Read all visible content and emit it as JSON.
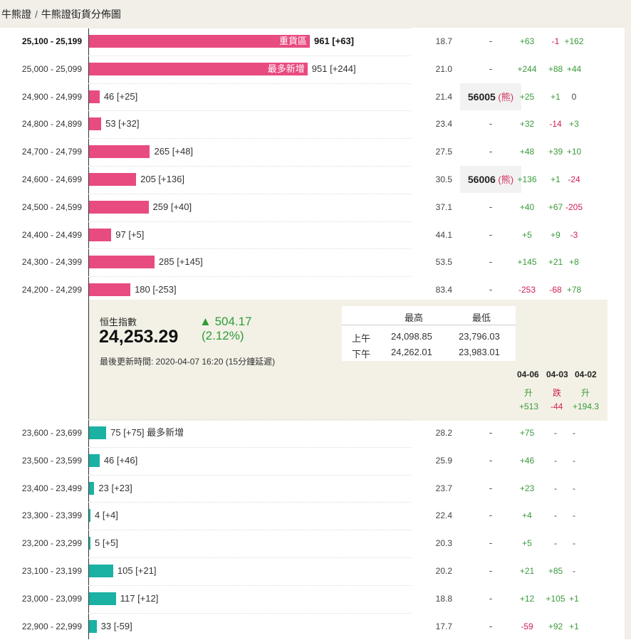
{
  "breadcrumb": {
    "root": "牛熊證",
    "current": "牛熊證街貨分佈圖"
  },
  "bull_rows": [
    {
      "range": "25,100 - 25,199",
      "bold": true,
      "value": 961,
      "inlabel": "重貨區",
      "count": "961 [+63]",
      "ratio": "18.7",
      "code": "-",
      "pin": "",
      "changes": [
        [
          "+63",
          "pos"
        ],
        [
          "-1",
          "neg"
        ],
        [
          "+162",
          "pos"
        ]
      ]
    },
    {
      "range": "25,000 - 25,099",
      "bold": false,
      "value": 951,
      "inlabel": "最多新增",
      "count": "951 [+244]",
      "ratio": "21.0",
      "code": "-",
      "pin": "",
      "changes": [
        [
          "+244",
          "pos"
        ],
        [
          "+88",
          "pos"
        ],
        [
          "+44",
          "pos"
        ]
      ]
    },
    {
      "range": "24,900 - 24,999",
      "bold": false,
      "value": 46,
      "inlabel": "",
      "count": "46 [+25]",
      "ratio": "21.4",
      "code": "56005",
      "pin": "熊",
      "changes": [
        [
          "+25",
          "pos"
        ],
        [
          "+1",
          "pos"
        ],
        [
          "0",
          "neu"
        ]
      ]
    },
    {
      "range": "24,800 - 24,899",
      "bold": false,
      "value": 53,
      "inlabel": "",
      "count": "53 [+32]",
      "ratio": "23.4",
      "code": "-",
      "pin": "",
      "changes": [
        [
          "+32",
          "pos"
        ],
        [
          "-14",
          "neg"
        ],
        [
          "+3",
          "pos"
        ]
      ]
    },
    {
      "range": "24,700 - 24,799",
      "bold": false,
      "value": 265,
      "inlabel": "",
      "count": "265 [+48]",
      "ratio": "27.5",
      "code": "-",
      "pin": "",
      "changes": [
        [
          "+48",
          "pos"
        ],
        [
          "+39",
          "pos"
        ],
        [
          "+10",
          "pos"
        ]
      ]
    },
    {
      "range": "24,600 - 24,699",
      "bold": false,
      "value": 205,
      "inlabel": "",
      "count": "205 [+136]",
      "ratio": "30.5",
      "code": "56006",
      "pin": "熊",
      "changes": [
        [
          "+136",
          "pos"
        ],
        [
          "+1",
          "pos"
        ],
        [
          "-24",
          "neg"
        ]
      ]
    },
    {
      "range": "24,500 - 24,599",
      "bold": false,
      "value": 259,
      "inlabel": "",
      "count": "259 [+40]",
      "ratio": "37.1",
      "code": "-",
      "pin": "",
      "changes": [
        [
          "+40",
          "pos"
        ],
        [
          "+67",
          "pos"
        ],
        [
          "-205",
          "neg"
        ]
      ]
    },
    {
      "range": "24,400 - 24,499",
      "bold": false,
      "value": 97,
      "inlabel": "",
      "count": "97 [+5]",
      "ratio": "44.1",
      "code": "-",
      "pin": "",
      "changes": [
        [
          "+5",
          "pos"
        ],
        [
          "+9",
          "pos"
        ],
        [
          "-3",
          "neg"
        ]
      ]
    },
    {
      "range": "24,300 - 24,399",
      "bold": false,
      "value": 285,
      "inlabel": "",
      "count": "285 [+145]",
      "ratio": "53.5",
      "code": "-",
      "pin": "",
      "changes": [
        [
          "+145",
          "pos"
        ],
        [
          "+21",
          "pos"
        ],
        [
          "+8",
          "pos"
        ]
      ]
    },
    {
      "range": "24,200 - 24,299",
      "bold": false,
      "value": 180,
      "inlabel": "",
      "count": "180 [-253]",
      "ratio": "83.4",
      "code": "-",
      "pin": "",
      "changes": [
        [
          "-253",
          "neg"
        ],
        [
          "-68",
          "neg"
        ],
        [
          "+78",
          "pos"
        ]
      ]
    }
  ],
  "summary": {
    "index_name": "恒生指數",
    "index_value": "24,253.29",
    "change_arrow": "▲",
    "change": "504.17",
    "change_pct": "(2.12%)",
    "updated": "最後更新時間: 2020-04-07 16:20 (15分鐘延遲)",
    "hl_headers": {
      "high": "最高",
      "low": "最低"
    },
    "hl_rows": [
      {
        "label": "上午",
        "high": "24,098.85",
        "low": "23,796.03"
      },
      {
        "label": "下午",
        "high": "24,262.01",
        "low": "23,983.01"
      }
    ],
    "history": [
      {
        "date": "04-06",
        "dir": "升",
        "val": "+513",
        "cls": "pos"
      },
      {
        "date": "04-03",
        "dir": "跌",
        "val": "-44",
        "cls": "neg"
      },
      {
        "date": "04-02",
        "dir": "升",
        "val": "+194.3",
        "cls": "pos"
      }
    ]
  },
  "bear_rows": [
    {
      "range": "23,600 - 23,699",
      "value": 75,
      "count": "75 [+75] 最多新增",
      "ratio": "28.2",
      "code": "-",
      "changes": [
        [
          "+75",
          "pos"
        ],
        [
          "-",
          "neu"
        ],
        [
          "-",
          "neu"
        ]
      ]
    },
    {
      "range": "23,500 - 23,599",
      "value": 46,
      "count": "46 [+46]",
      "ratio": "25.9",
      "code": "-",
      "changes": [
        [
          "+46",
          "pos"
        ],
        [
          "-",
          "neu"
        ],
        [
          "-",
          "neu"
        ]
      ]
    },
    {
      "range": "23,400 - 23,499",
      "value": 23,
      "count": "23 [+23]",
      "ratio": "23.7",
      "code": "-",
      "changes": [
        [
          "+23",
          "pos"
        ],
        [
          "-",
          "neu"
        ],
        [
          "-",
          "neu"
        ]
      ]
    },
    {
      "range": "23,300 - 23,399",
      "value": 4,
      "count": "4 [+4]",
      "ratio": "22.4",
      "code": "-",
      "changes": [
        [
          "+4",
          "pos"
        ],
        [
          "-",
          "neu"
        ],
        [
          "-",
          "neu"
        ]
      ]
    },
    {
      "range": "23,200 - 23,299",
      "value": 5,
      "count": "5 [+5]",
      "ratio": "20.3",
      "code": "-",
      "changes": [
        [
          "+5",
          "pos"
        ],
        [
          "-",
          "neu"
        ],
        [
          "-",
          "neu"
        ]
      ]
    },
    {
      "range": "23,100 - 23,199",
      "value": 105,
      "count": "105 [+21]",
      "ratio": "20.2",
      "code": "-",
      "changes": [
        [
          "+21",
          "pos"
        ],
        [
          "+85",
          "pos"
        ],
        [
          "-",
          "neu"
        ]
      ]
    },
    {
      "range": "23,000 - 23,099",
      "value": 117,
      "count": "117 [+12]",
      "ratio": "18.8",
      "code": "-",
      "changes": [
        [
          "+12",
          "pos"
        ],
        [
          "+105",
          "pos"
        ],
        [
          "+1",
          "pos"
        ]
      ]
    },
    {
      "range": "22,900 - 22,999",
      "value": 33,
      "count": "33 [-59]",
      "ratio": "17.7",
      "code": "-",
      "changes": [
        [
          "-59",
          "neg"
        ],
        [
          "+92",
          "pos"
        ],
        [
          "+1",
          "pos"
        ]
      ]
    }
  ],
  "colors": {
    "bull_bar": "#e84b7f",
    "bear_bar": "#1bb1a3",
    "up": "#3a9a3a",
    "down": "#d02050"
  }
}
